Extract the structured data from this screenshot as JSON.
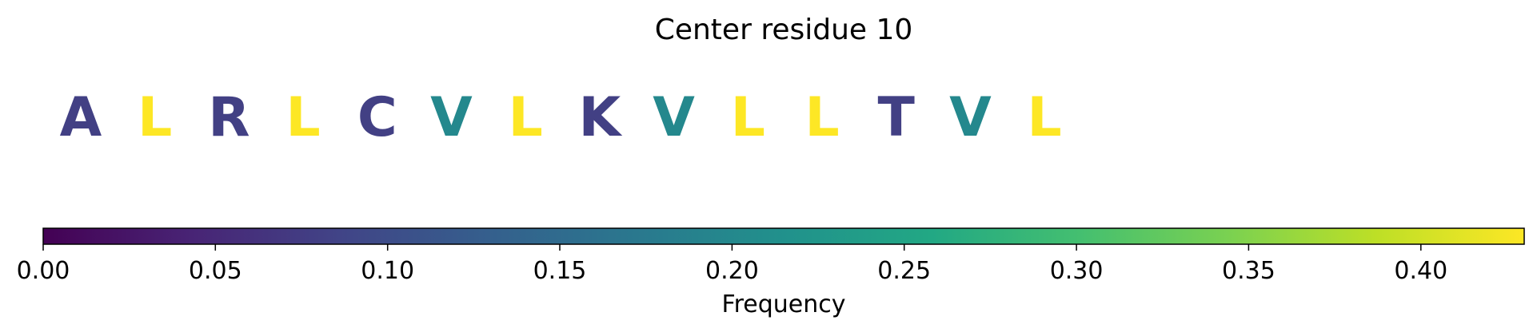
{
  "chart_data": {
    "type": "other",
    "title": "Center residue 10",
    "residues": [
      {
        "letter": "A",
        "frequency": 0.08
      },
      {
        "letter": "L",
        "frequency": 0.43
      },
      {
        "letter": "R",
        "frequency": 0.08
      },
      {
        "letter": "L",
        "frequency": 0.43
      },
      {
        "letter": "C",
        "frequency": 0.08
      },
      {
        "letter": "V",
        "frequency": 0.2
      },
      {
        "letter": "L",
        "frequency": 0.43
      },
      {
        "letter": "K",
        "frequency": 0.08
      },
      {
        "letter": "V",
        "frequency": 0.2
      },
      {
        "letter": "L",
        "frequency": 0.43
      },
      {
        "letter": "L",
        "frequency": 0.43
      },
      {
        "letter": "T",
        "frequency": 0.08
      },
      {
        "letter": "V",
        "frequency": 0.2
      },
      {
        "letter": "L",
        "frequency": 0.43
      }
    ],
    "colorbar": {
      "label": "Frequency",
      "colormap": "viridis",
      "range": [
        0,
        0.43
      ],
      "ticks": [
        0.0,
        0.05,
        0.1,
        0.15,
        0.2,
        0.25,
        0.3,
        0.35,
        0.4
      ],
      "tick_labels": [
        "0.00",
        "0.05",
        "0.10",
        "0.15",
        "0.20",
        "0.25",
        "0.30",
        "0.35",
        "0.40"
      ]
    }
  }
}
